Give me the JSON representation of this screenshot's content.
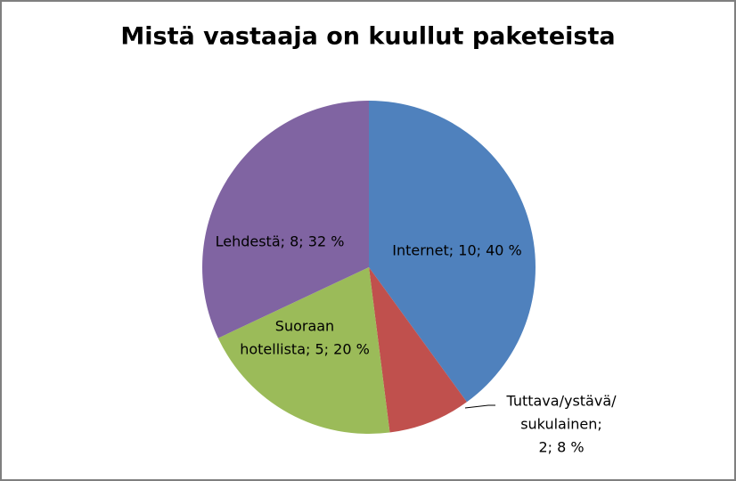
{
  "chart_data": {
    "type": "pie",
    "title": "Mistä vastaaja on kuullut paketeista",
    "values": [
      10,
      2,
      5,
      8
    ],
    "value_labels": [
      [
        "Internet; 10; 40 %"
      ],
      [
        "Tuttava/ystävä/",
        "sukulainen;",
        "2; 8 %"
      ],
      [
        "Suoraan",
        "hotellista; 5; 20 %"
      ],
      [
        "Lehdestä; 8; 32 %"
      ]
    ],
    "colors": [
      "#4f81bd",
      "#c0504d",
      "#9bbb59",
      "#8064a2"
    ]
  }
}
